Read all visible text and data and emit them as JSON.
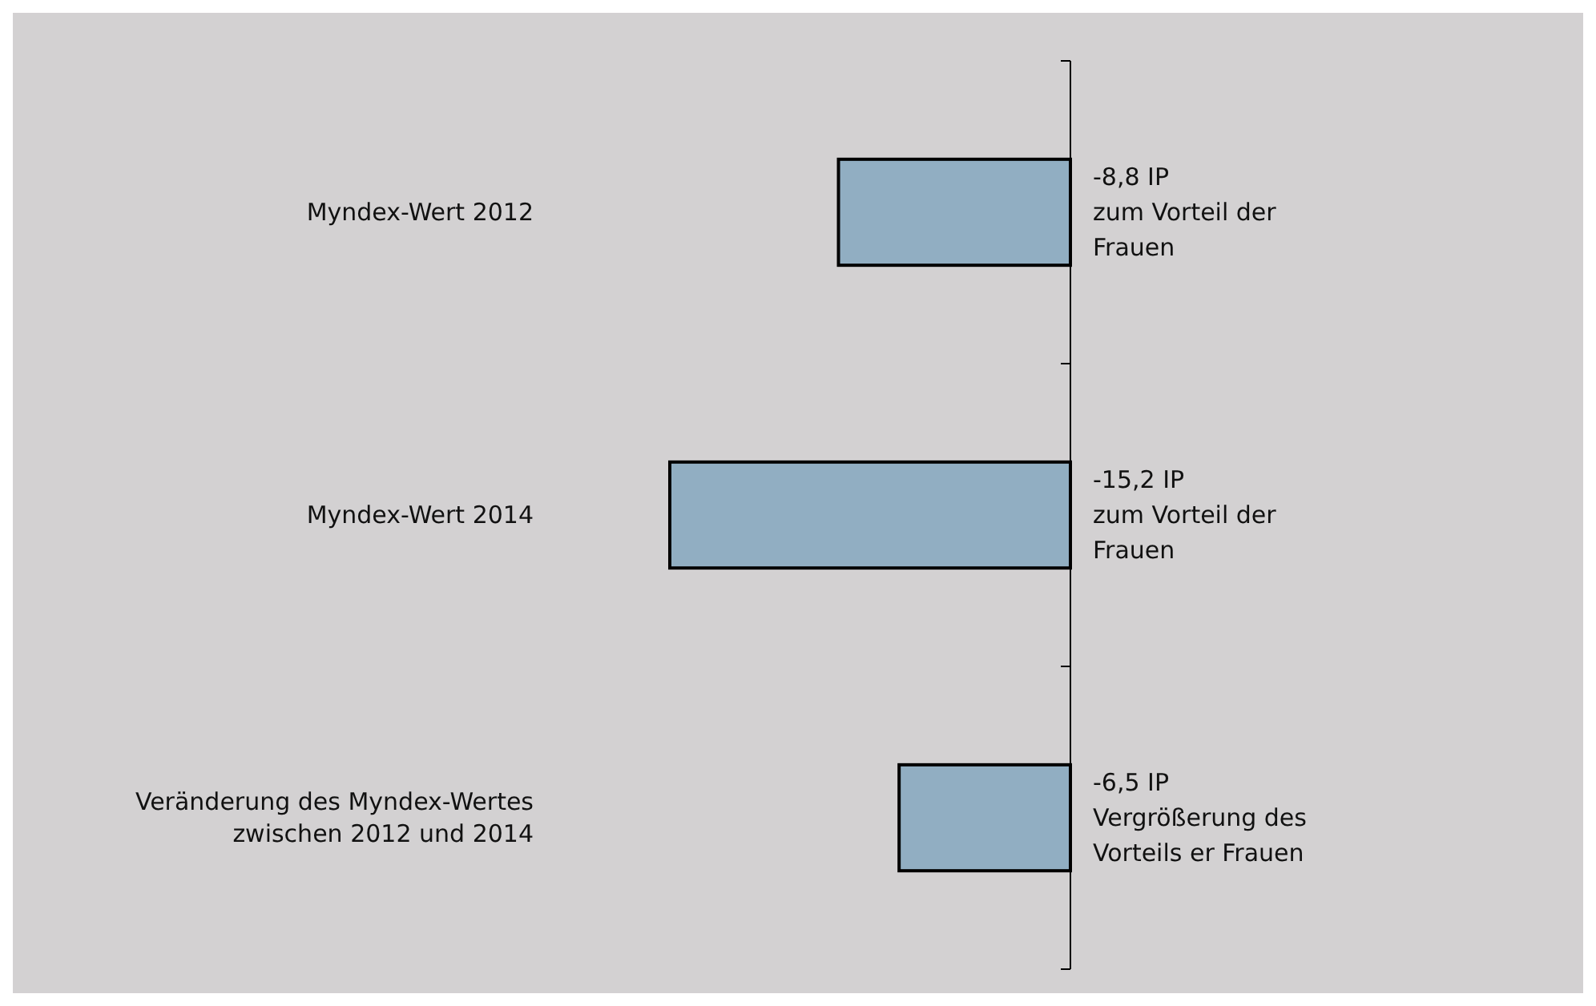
{
  "chart_data": {
    "type": "bar",
    "orientation": "horizontal",
    "categories": [
      "Myndex-Wert 2012",
      "Myndex-Wert 2014",
      "Veränderung des Myndex-Wertes\nzwischen 2012 und 2014"
    ],
    "values": [
      -8.8,
      -15.2,
      -6.5
    ],
    "colors": [
      "#91aec2",
      "#91aec2",
      "#91aec2"
    ],
    "value_labels": [
      "-8,8 IP\nzum Vorteil der\nFrauen",
      "-15,2 IP\nzum Vorteil der\nFrauen",
      "-6,5 IP\nVergrößerung des\nVorteils er Frauen"
    ],
    "grid": false
  }
}
